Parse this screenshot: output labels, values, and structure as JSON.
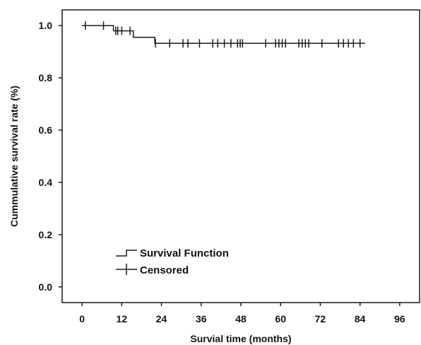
{
  "chart_data": {
    "type": "line",
    "subtype": "kaplan-meier survival curve",
    "xlabel": "Survial time (months)",
    "ylabel": "Cummulative survival rate (%)",
    "xlim": [
      -6,
      102
    ],
    "ylim": [
      -0.06,
      1.06
    ],
    "x_ticks": [
      0,
      12,
      24,
      36,
      48,
      60,
      72,
      84,
      96
    ],
    "y_ticks": [
      0.0,
      0.2,
      0.4,
      0.6,
      0.8,
      1.0
    ],
    "y_tick_labels": [
      "0.0",
      "0.2",
      "0.4",
      "0.6",
      "0.8",
      "1.0"
    ],
    "grid": false,
    "legend_position": "bottom-left",
    "line_color": "#1a1a1a",
    "series": [
      {
        "name": "Survival Function",
        "kind": "step",
        "points": [
          {
            "x": 0,
            "y": 1.0
          },
          {
            "x": 9.5,
            "y": 1.0
          },
          {
            "x": 9.5,
            "y": 0.98
          },
          {
            "x": 15.5,
            "y": 0.98
          },
          {
            "x": 15.5,
            "y": 0.955
          },
          {
            "x": 22,
            "y": 0.955
          },
          {
            "x": 22,
            "y": 0.932
          },
          {
            "x": 85.5,
            "y": 0.932
          }
        ]
      },
      {
        "name": "Censored",
        "kind": "marker",
        "points": [
          {
            "x": 1,
            "y": 1.0
          },
          {
            "x": 6.5,
            "y": 1.0
          },
          {
            "x": 10.2,
            "y": 0.98
          },
          {
            "x": 10.8,
            "y": 0.98
          },
          {
            "x": 12,
            "y": 0.98
          },
          {
            "x": 14.5,
            "y": 0.98
          },
          {
            "x": 22.2,
            "y": 0.932
          },
          {
            "x": 26.5,
            "y": 0.932
          },
          {
            "x": 30.5,
            "y": 0.932
          },
          {
            "x": 32,
            "y": 0.932
          },
          {
            "x": 35.5,
            "y": 0.932
          },
          {
            "x": 39.5,
            "y": 0.932
          },
          {
            "x": 41,
            "y": 0.932
          },
          {
            "x": 43,
            "y": 0.932
          },
          {
            "x": 45,
            "y": 0.932
          },
          {
            "x": 47,
            "y": 0.932
          },
          {
            "x": 47.8,
            "y": 0.932
          },
          {
            "x": 48.5,
            "y": 0.932
          },
          {
            "x": 55.5,
            "y": 0.932
          },
          {
            "x": 58.5,
            "y": 0.932
          },
          {
            "x": 59.5,
            "y": 0.932
          },
          {
            "x": 60.5,
            "y": 0.932
          },
          {
            "x": 61.5,
            "y": 0.932
          },
          {
            "x": 65.5,
            "y": 0.932
          },
          {
            "x": 66.5,
            "y": 0.932
          },
          {
            "x": 67.5,
            "y": 0.932
          },
          {
            "x": 68.5,
            "y": 0.932
          },
          {
            "x": 72.5,
            "y": 0.932
          },
          {
            "x": 77.5,
            "y": 0.932
          },
          {
            "x": 79,
            "y": 0.932
          },
          {
            "x": 80.5,
            "y": 0.932
          },
          {
            "x": 82,
            "y": 0.932
          },
          {
            "x": 84,
            "y": 0.932
          }
        ]
      }
    ]
  }
}
